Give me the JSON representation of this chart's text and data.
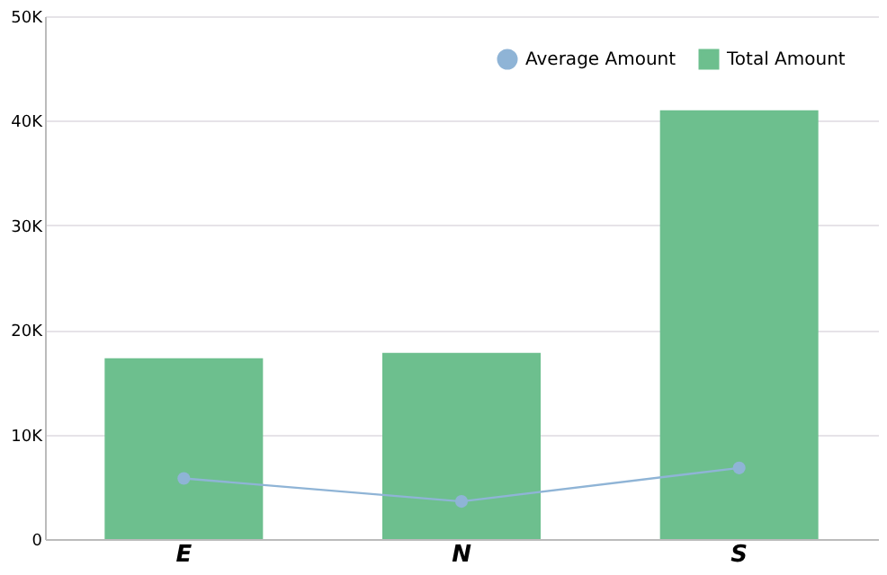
{
  "chart_data": {
    "type": "bar",
    "categories": [
      "E",
      "N",
      "S"
    ],
    "series": [
      {
        "name": "Average Amount",
        "type": "line",
        "color": "#8fb4d6",
        "values": [
          5800,
          3600,
          6800
        ],
        "marker": "circle"
      },
      {
        "name": "Total Amount",
        "color": "#6dbf8e",
        "values": [
          17300,
          17800,
          41000
        ],
        "marker": "square"
      }
    ],
    "ylim": [
      0,
      50000
    ],
    "yticks": [
      0,
      {
        "value": 10000,
        "label": "10K"
      },
      {
        "value": 20000,
        "label": "20K"
      },
      {
        "value": 30000,
        "label": "30K"
      },
      {
        "value": 40000,
        "label": "40K"
      },
      {
        "value": 50000,
        "label": "50K"
      }
    ],
    "grid": "y",
    "legend": "top right"
  }
}
